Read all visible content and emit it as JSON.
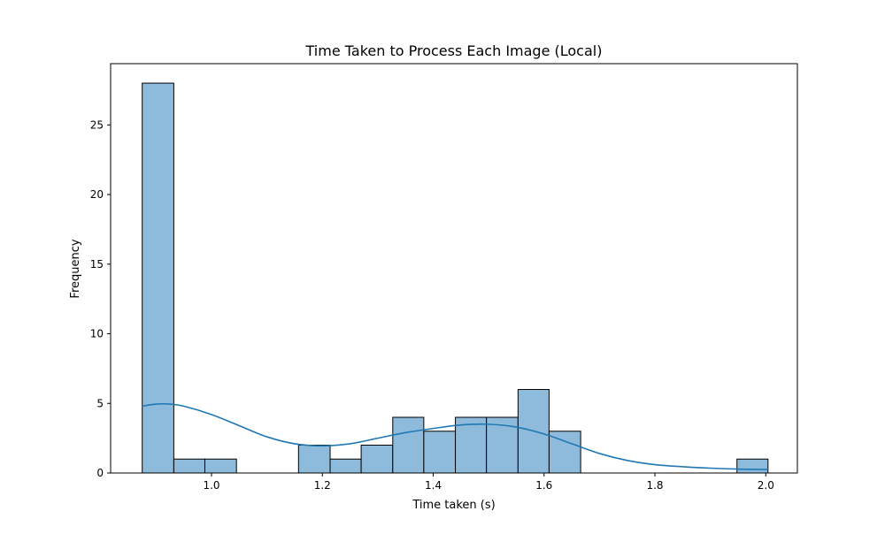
{
  "chart_data": {
    "type": "bar",
    "subtype": "histogram",
    "title": "Time Taken to Process Each Image (Local)",
    "xlabel": "Time taken (s)",
    "ylabel": "Frequency",
    "xlim": [
      0.818,
      2.057
    ],
    "ylim": [
      0,
      29.4
    ],
    "xticks": [
      1.0,
      1.2,
      1.4,
      1.6,
      1.8,
      2.0
    ],
    "xtick_labels": [
      "1.0",
      "1.2",
      "1.4",
      "1.6",
      "1.8",
      "2.0"
    ],
    "yticks": [
      0,
      5,
      10,
      15,
      20,
      25
    ],
    "ytick_labels": [
      "0",
      "5",
      "10",
      "15",
      "20",
      "25"
    ],
    "grid": false,
    "bar_color": "#8ebbdb",
    "bar_edge_color": "#000000",
    "kde_color": "#1f77b4",
    "bins": [
      {
        "x0": 0.875,
        "x1": 0.932,
        "count": 28
      },
      {
        "x0": 0.932,
        "x1": 0.988,
        "count": 1
      },
      {
        "x0": 0.988,
        "x1": 1.045,
        "count": 1
      },
      {
        "x0": 1.045,
        "x1": 1.101,
        "count": 0
      },
      {
        "x0": 1.101,
        "x1": 1.157,
        "count": 0
      },
      {
        "x0": 1.157,
        "x1": 1.214,
        "count": 2
      },
      {
        "x0": 1.214,
        "x1": 1.27,
        "count": 1
      },
      {
        "x0": 1.27,
        "x1": 1.327,
        "count": 2
      },
      {
        "x0": 1.327,
        "x1": 1.383,
        "count": 4
      },
      {
        "x0": 1.383,
        "x1": 1.44,
        "count": 3
      },
      {
        "x0": 1.44,
        "x1": 1.496,
        "count": 4
      },
      {
        "x0": 1.496,
        "x1": 1.553,
        "count": 4
      },
      {
        "x0": 1.553,
        "x1": 1.609,
        "count": 6
      },
      {
        "x0": 1.609,
        "x1": 1.666,
        "count": 3
      },
      {
        "x0": 1.666,
        "x1": 1.722,
        "count": 0
      },
      {
        "x0": 1.722,
        "x1": 1.778,
        "count": 0
      },
      {
        "x0": 1.778,
        "x1": 1.835,
        "count": 0
      },
      {
        "x0": 1.835,
        "x1": 1.891,
        "count": 0
      },
      {
        "x0": 1.891,
        "x1": 1.948,
        "count": 0
      },
      {
        "x0": 1.948,
        "x1": 2.004,
        "count": 1
      }
    ],
    "kde": {
      "x": [
        0.875,
        0.9,
        0.925,
        0.95,
        1.0,
        1.05,
        1.1,
        1.15,
        1.2,
        1.25,
        1.3,
        1.35,
        1.4,
        1.45,
        1.5,
        1.55,
        1.6,
        1.65,
        1.7,
        1.75,
        1.8,
        1.85,
        1.9,
        1.95,
        2.004
      ],
      "y": [
        4.8,
        4.95,
        4.95,
        4.8,
        4.2,
        3.4,
        2.6,
        2.1,
        1.95,
        2.1,
        2.5,
        2.9,
        3.2,
        3.45,
        3.5,
        3.3,
        2.8,
        2.1,
        1.4,
        0.9,
        0.6,
        0.45,
        0.35,
        0.28,
        0.25
      ]
    }
  }
}
